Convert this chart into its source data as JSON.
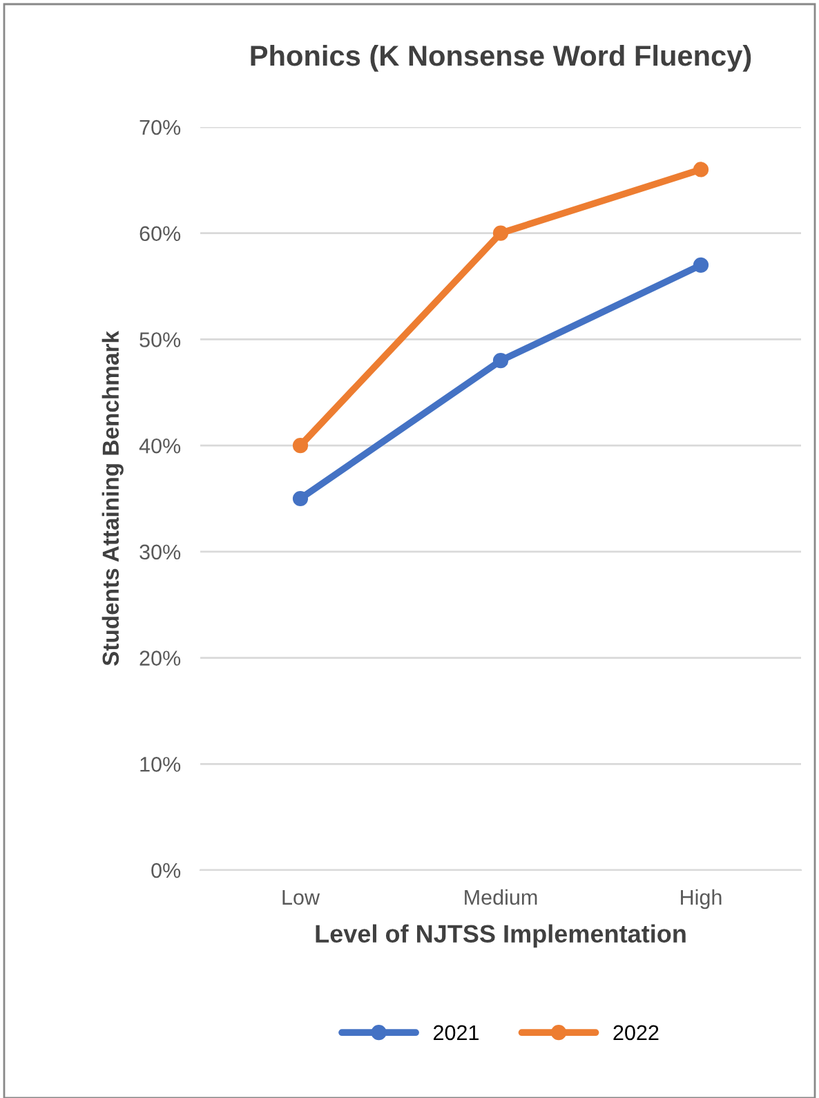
{
  "chart_data": {
    "type": "line",
    "title": "Phonics (K Nonsense Word Fluency)",
    "xlabel": "Level of NJTSS Implementation",
    "ylabel": "Students Attaining Benchmark",
    "categories": [
      "Low",
      "Medium",
      "High"
    ],
    "series": [
      {
        "name": "2021",
        "color": "#4472c4",
        "values": [
          35,
          48,
          57
        ]
      },
      {
        "name": "2022",
        "color": "#ed7d31",
        "values": [
          40,
          60,
          66
        ]
      }
    ],
    "ylim": [
      0,
      70
    ],
    "yticks": [
      {
        "value": 0,
        "label": "0%"
      },
      {
        "value": 10,
        "label": "10%"
      },
      {
        "value": 20,
        "label": "20%"
      },
      {
        "value": 30,
        "label": "30%"
      },
      {
        "value": 40,
        "label": "40%"
      },
      {
        "value": 50,
        "label": "50%"
      },
      {
        "value": 60,
        "label": "60%"
      },
      {
        "value": 70,
        "label": "70%"
      }
    ],
    "grid": "y",
    "legend": "bottom",
    "marker": "circle",
    "line_style": "solid"
  }
}
